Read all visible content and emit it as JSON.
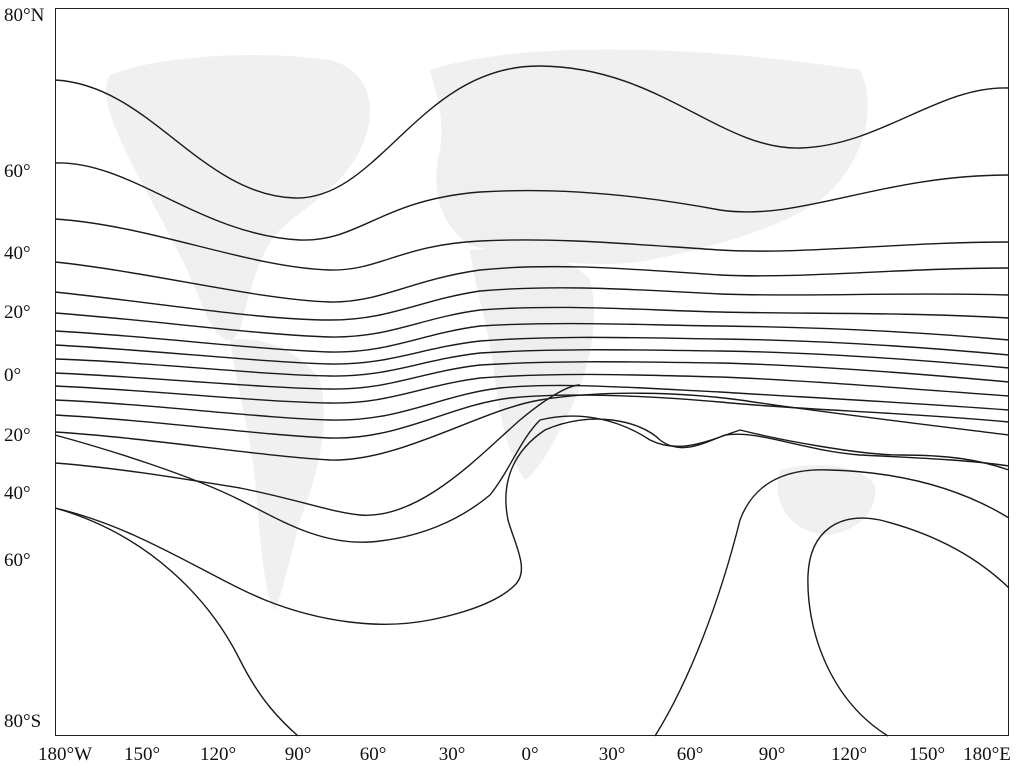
{
  "latitude_labels": [
    "80°N",
    "60°",
    "40°",
    "20°",
    "0°",
    "20°",
    "40°",
    "60°",
    "80°S"
  ],
  "longitude_labels": [
    "180°W",
    "150°",
    "120°",
    "90°",
    "60°",
    "30°",
    "0°",
    "30°",
    "60°",
    "90°",
    "120°",
    "150°",
    "180°E"
  ],
  "contour_count": 17,
  "colors": {
    "line": "#1a1a1a",
    "landmass": "#d4d4d4",
    "frame": "#222222"
  }
}
